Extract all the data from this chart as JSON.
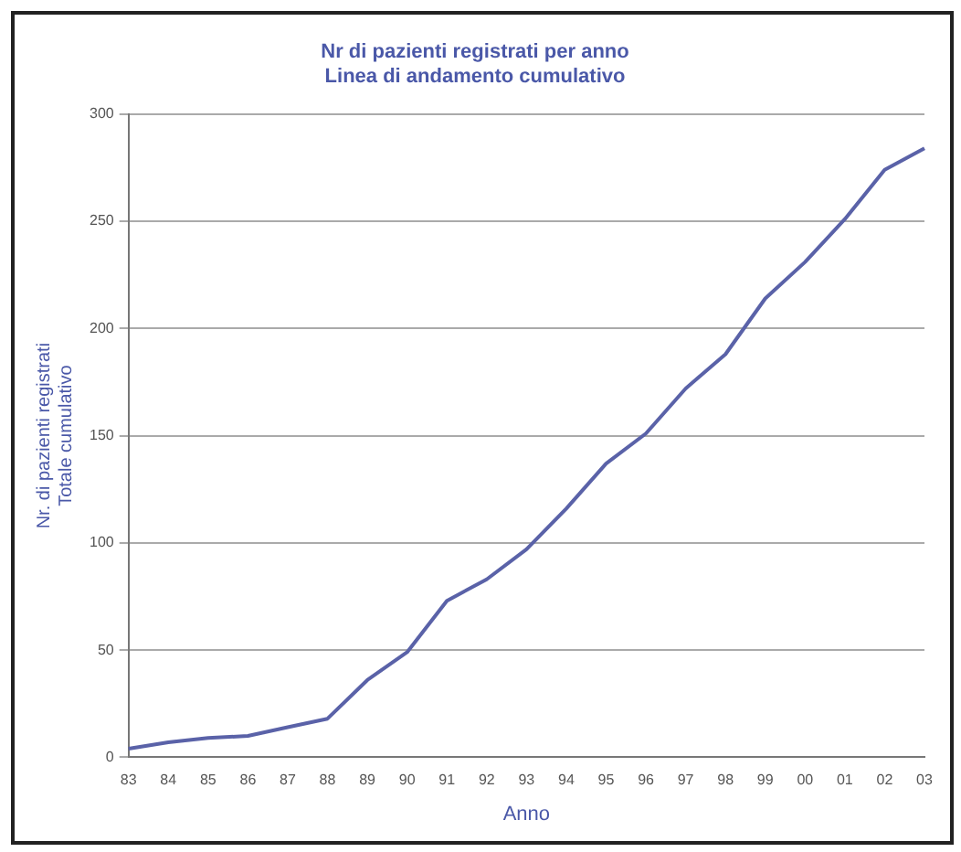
{
  "chart_data": {
    "type": "line",
    "title": [
      "Nr di pazienti registrati per anno",
      "Linea di andamento cumulativo"
    ],
    "xlabel": "Anno",
    "ylabel": [
      "Nr. di pazienti registrati",
      "Totale cumulativo"
    ],
    "categories": [
      "83",
      "84",
      "85",
      "86",
      "87",
      "88",
      "89",
      "90",
      "91",
      "92",
      "93",
      "94",
      "95",
      "96",
      "97",
      "98",
      "99",
      "00",
      "01",
      "02",
      "03"
    ],
    "series": [
      {
        "color": "#5a62a8",
        "values": [
          4,
          7,
          9,
          10,
          14,
          18,
          36,
          49,
          73,
          83,
          97,
          116,
          137,
          151,
          172,
          188,
          214,
          231,
          251,
          274,
          284
        ]
      }
    ],
    "ylim": [
      0,
      300
    ],
    "yticks": [
      0,
      50,
      100,
      150,
      200,
      250,
      300
    ],
    "grid": "y",
    "legend": false,
    "marker": "none",
    "line_style": "solid"
  }
}
